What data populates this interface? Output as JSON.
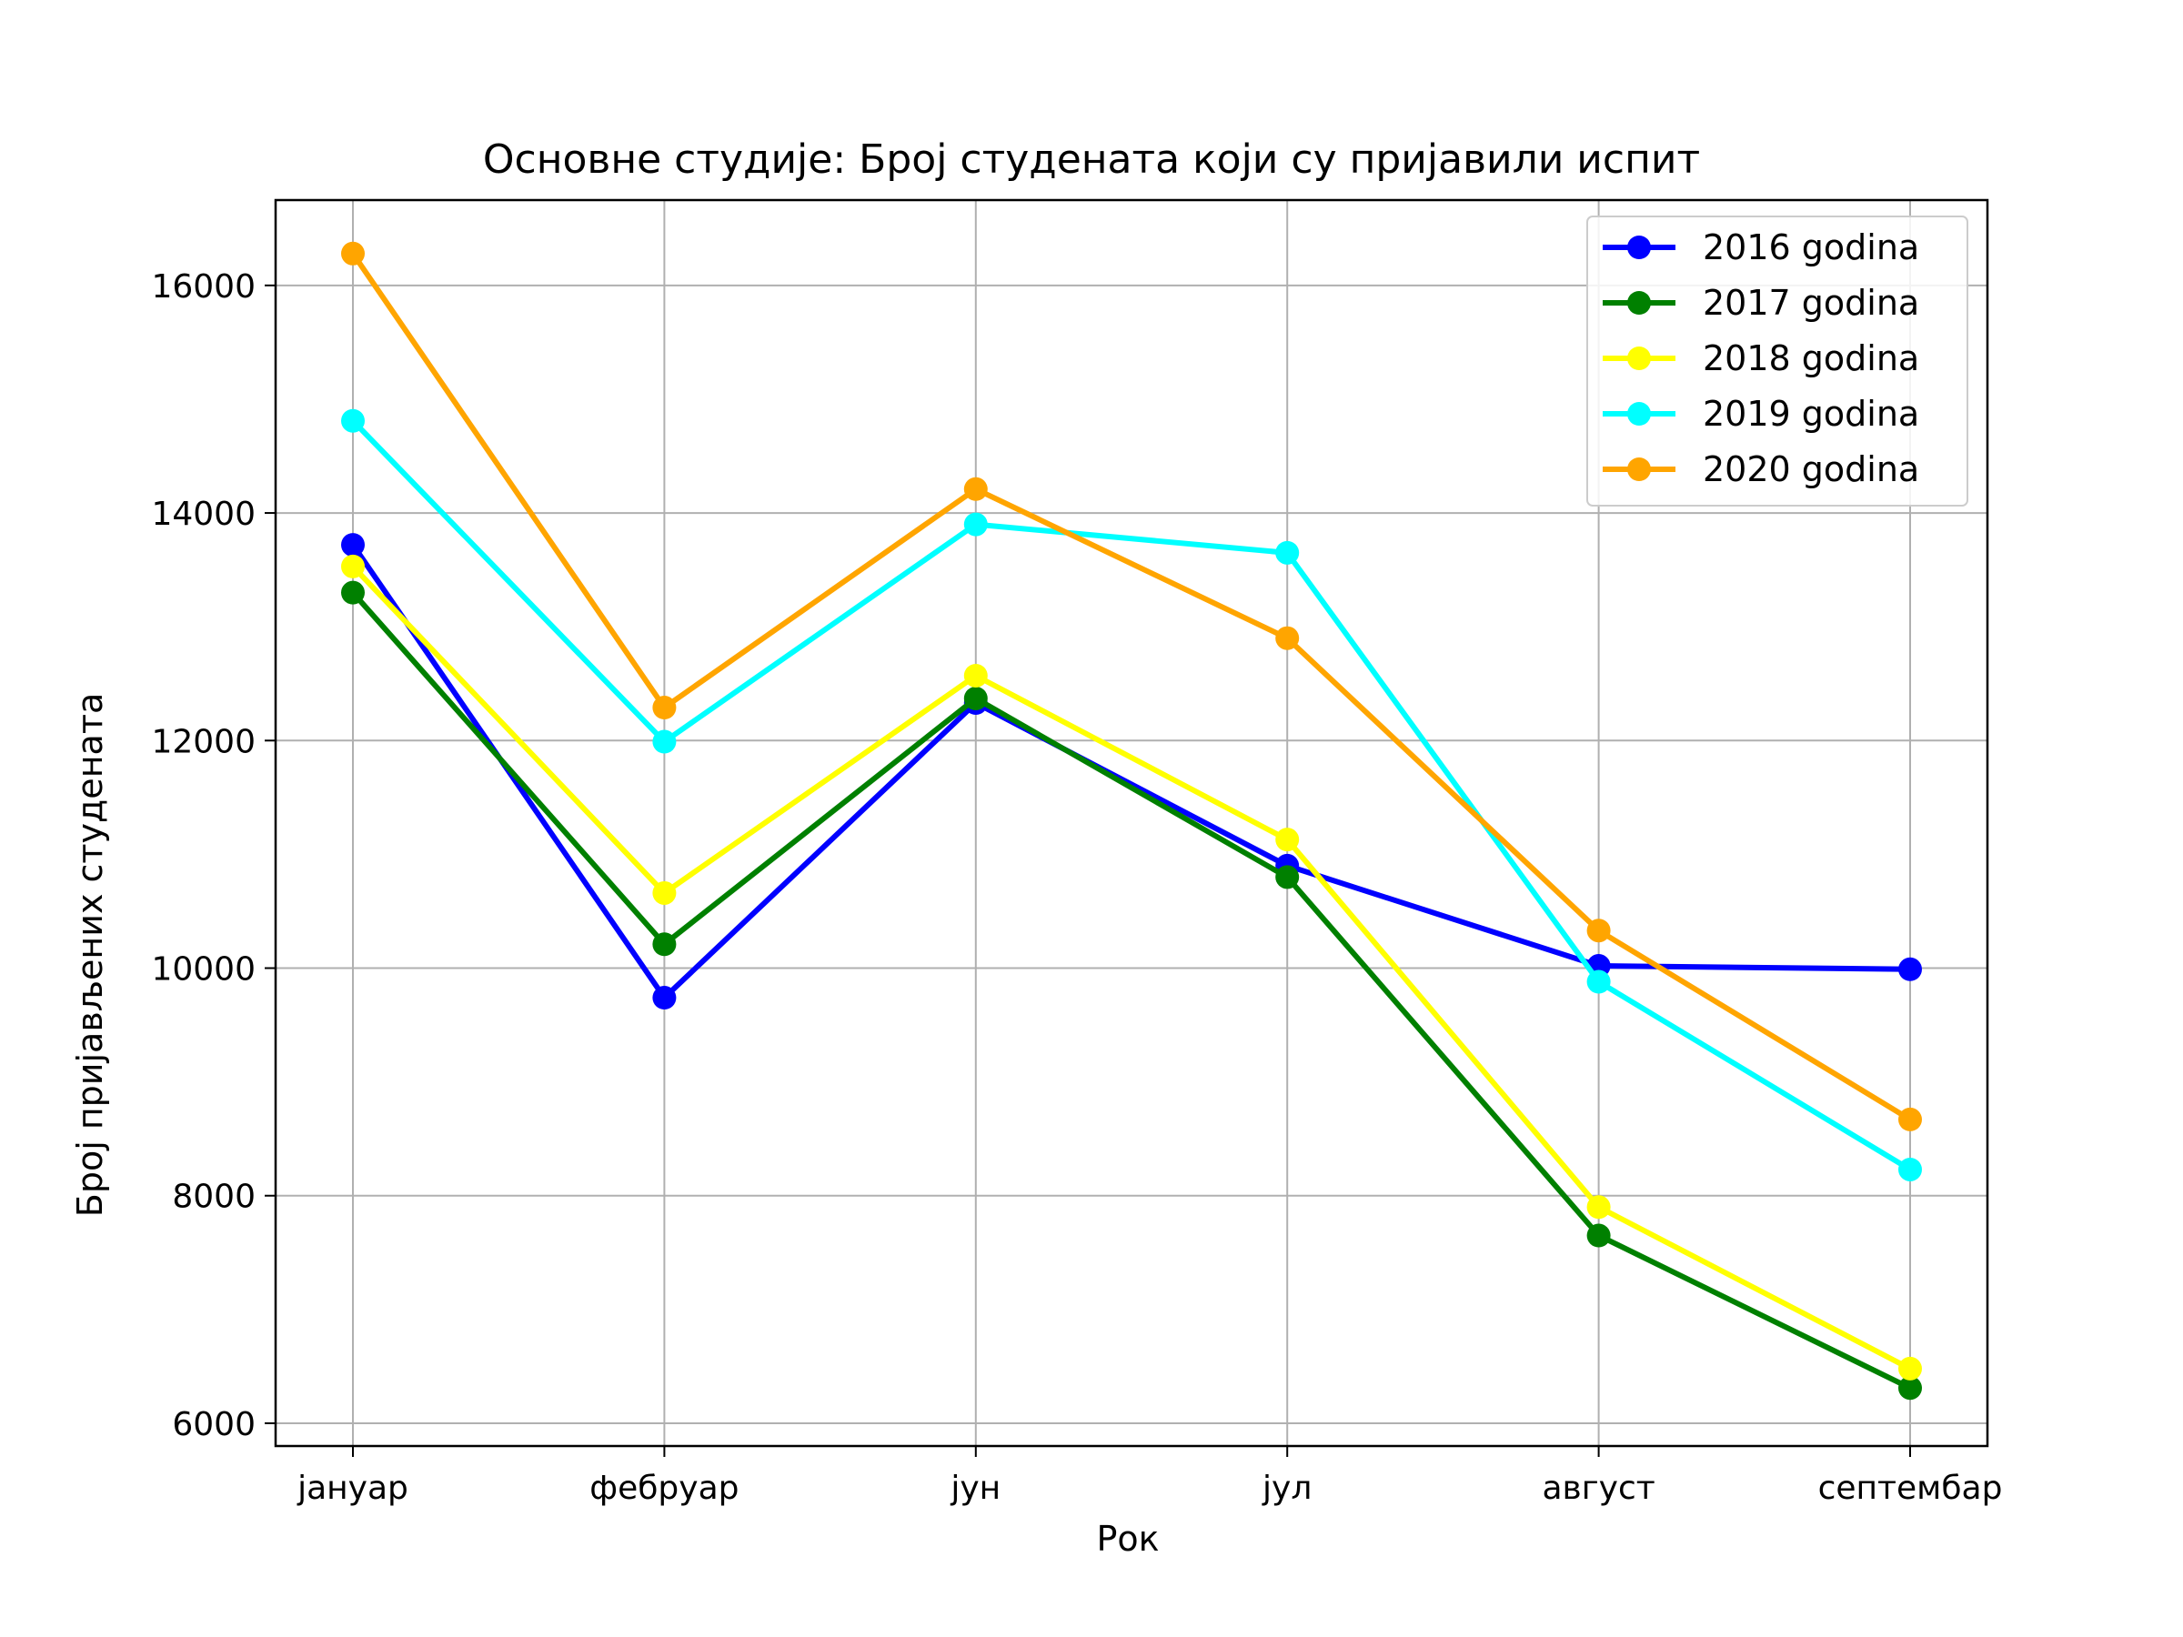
{
  "chart_data": {
    "type": "line",
    "title": "Основне студије: Број студената који су пријавили испит",
    "xlabel": "Рок",
    "ylabel": "Број пријављених студената",
    "categories": [
      "јануар",
      "фебруар",
      "јун",
      "јул",
      "август",
      "септембар"
    ],
    "ylim": [
      5800,
      16750
    ],
    "yticks": [
      6000,
      8000,
      10000,
      12000,
      14000,
      16000
    ],
    "grid": true,
    "legend_position": "top-right",
    "series": [
      {
        "name": "2016 godina",
        "color": "#0000ff",
        "values": [
          13720,
          9740,
          12330,
          10900,
          10020,
          9990
        ]
      },
      {
        "name": "2017 godina",
        "color": "#008000",
        "values": [
          13300,
          10210,
          12370,
          10800,
          7650,
          6310
        ]
      },
      {
        "name": "2018 godina",
        "color": "#ffff00",
        "values": [
          13530,
          10660,
          12570,
          11130,
          7900,
          6480
        ]
      },
      {
        "name": "2019 godina",
        "color": "#00ffff",
        "values": [
          14810,
          11990,
          13900,
          13650,
          9880,
          8230
        ]
      },
      {
        "name": "2020 godina",
        "color": "#ffa500",
        "values": [
          16280,
          12290,
          14210,
          12900,
          10330,
          8670
        ]
      }
    ]
  }
}
